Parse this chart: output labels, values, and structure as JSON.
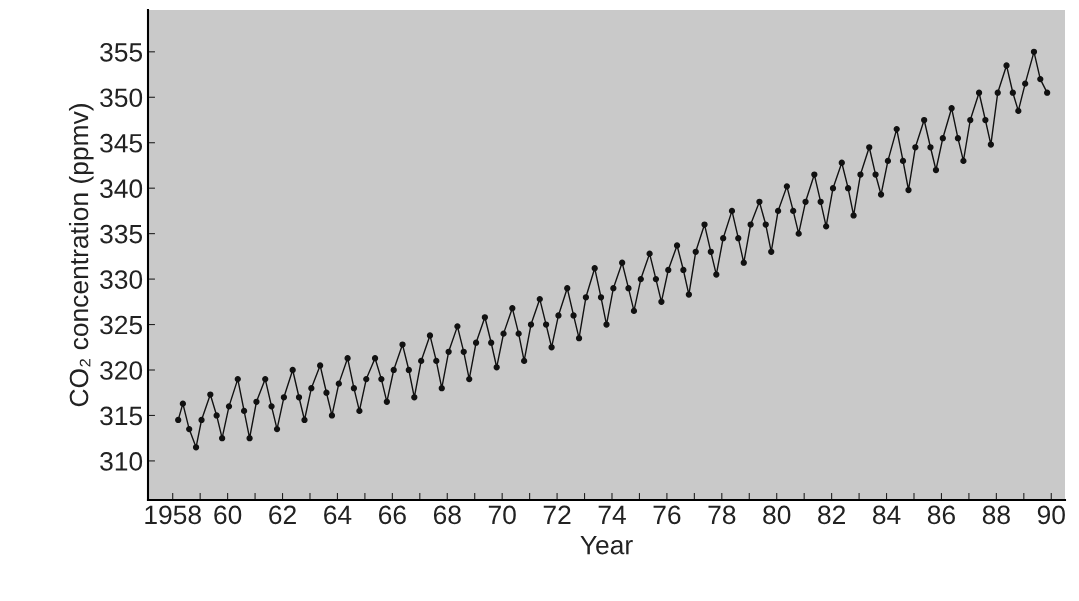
{
  "chart_data": {
    "type": "line",
    "xlabel": "Year",
    "ylabel": "CO₂ concentration (ppmv)",
    "x": [
      1958.2,
      1958.37,
      1958.6,
      1958.85,
      1959.05,
      1959.37,
      1959.6,
      1959.8,
      1960.05,
      1960.37,
      1960.6,
      1960.8,
      1961.05,
      1961.37,
      1961.6,
      1961.8,
      1962.05,
      1962.37,
      1962.6,
      1962.8,
      1963.05,
      1963.37,
      1963.6,
      1963.8,
      1964.05,
      1964.37,
      1964.6,
      1964.8,
      1965.05,
      1965.37,
      1965.6,
      1965.8,
      1966.05,
      1966.37,
      1966.6,
      1966.8,
      1967.05,
      1967.37,
      1967.6,
      1967.8,
      1968.05,
      1968.37,
      1968.6,
      1968.8,
      1969.05,
      1969.37,
      1969.6,
      1969.8,
      1970.05,
      1970.37,
      1970.6,
      1970.8,
      1971.05,
      1971.37,
      1971.6,
      1971.8,
      1972.05,
      1972.37,
      1972.6,
      1972.8,
      1973.05,
      1973.37,
      1973.6,
      1973.8,
      1974.05,
      1974.37,
      1974.6,
      1974.8,
      1975.05,
      1975.37,
      1975.6,
      1975.8,
      1976.05,
      1976.37,
      1976.6,
      1976.8,
      1977.05,
      1977.37,
      1977.6,
      1977.8,
      1978.05,
      1978.37,
      1978.6,
      1978.8,
      1979.05,
      1979.37,
      1979.6,
      1979.8,
      1980.05,
      1980.37,
      1980.6,
      1980.8,
      1981.05,
      1981.37,
      1981.6,
      1981.8,
      1982.05,
      1982.37,
      1982.6,
      1982.8,
      1983.05,
      1983.37,
      1983.6,
      1983.8,
      1984.05,
      1984.37,
      1984.6,
      1984.8,
      1985.05,
      1985.37,
      1985.6,
      1985.8,
      1986.05,
      1986.37,
      1986.6,
      1986.8,
      1987.05,
      1987.37,
      1987.6,
      1987.8,
      1988.05,
      1988.37,
      1988.6,
      1988.8,
      1989.05,
      1989.37,
      1989.6,
      1989.85
    ],
    "series": [
      {
        "color": "#111111",
        "values": [
          314.5,
          316.3,
          313.5,
          311.5,
          314.5,
          317.3,
          315,
          312.5,
          316,
          319,
          315.5,
          312.5,
          316.5,
          319,
          316,
          313.5,
          317,
          320,
          317,
          314.5,
          318,
          320.5,
          317.5,
          315,
          318.5,
          321.3,
          318,
          315.5,
          319,
          321.3,
          319,
          316.5,
          320,
          322.8,
          320,
          317,
          321,
          323.8,
          321,
          318,
          322,
          324.8,
          322,
          319,
          323,
          325.8,
          323,
          320.3,
          324,
          326.8,
          324,
          321,
          325,
          327.8,
          325,
          322.5,
          326,
          329,
          326,
          323.5,
          328,
          331.2,
          328,
          325,
          329,
          331.8,
          329,
          326.5,
          330,
          332.8,
          330,
          327.5,
          331,
          333.7,
          331,
          328.3,
          333,
          336,
          333,
          330.5,
          334.5,
          337.5,
          334.5,
          331.8,
          336,
          338.5,
          336,
          333,
          337.5,
          340.2,
          337.5,
          335,
          338.5,
          341.5,
          338.5,
          335.8,
          340,
          342.8,
          340,
          337,
          341.5,
          344.5,
          341.5,
          339.3,
          343,
          346.5,
          343,
          339.8,
          344.5,
          347.5,
          344.5,
          342,
          345.5,
          348.8,
          345.5,
          343,
          347.5,
          350.5,
          347.5,
          344.8,
          350.5,
          353.5,
          350.5,
          348.5,
          351.5,
          355,
          352,
          350.5
        ]
      }
    ],
    "marker": "circle",
    "line_style": "solid",
    "xlim": [
      1957.1,
      1990.5
    ],
    "ylim": [
      305.7,
      359.6
    ],
    "xticks": [
      1958,
      {
        "value": 1959,
        "label": null
      },
      {
        "value": 1960,
        "label": "60"
      },
      {
        "value": 1961,
        "label": null
      },
      {
        "value": 1962,
        "label": "62"
      },
      {
        "value": 1963,
        "label": null
      },
      {
        "value": 1964,
        "label": "64"
      },
      {
        "value": 1965,
        "label": null
      },
      {
        "value": 1966,
        "label": "66"
      },
      {
        "value": 1967,
        "label": null
      },
      {
        "value": 1968,
        "label": "68"
      },
      {
        "value": 1969,
        "label": null
      },
      {
        "value": 1970,
        "label": "70"
      },
      {
        "value": 1971,
        "label": null
      },
      {
        "value": 1972,
        "label": "72"
      },
      {
        "value": 1973,
        "label": null
      },
      {
        "value": 1974,
        "label": "74"
      },
      {
        "value": 1975,
        "label": null
      },
      {
        "value": 1976,
        "label": "76"
      },
      {
        "value": 1977,
        "label": null
      },
      {
        "value": 1978,
        "label": "78"
      },
      {
        "value": 1979,
        "label": null
      },
      {
        "value": 1980,
        "label": "80"
      },
      {
        "value": 1981,
        "label": null
      },
      {
        "value": 1982,
        "label": "82"
      },
      {
        "value": 1983,
        "label": null
      },
      {
        "value": 1984,
        "label": "84"
      },
      {
        "value": 1985,
        "label": null
      },
      {
        "value": 1986,
        "label": "86"
      },
      {
        "value": 1987,
        "label": null
      },
      {
        "value": 1988,
        "label": "88"
      },
      {
        "value": 1989,
        "label": null
      },
      {
        "value": 1990,
        "label": "90"
      }
    ],
    "yticks": [
      310,
      315,
      320,
      325,
      330,
      335,
      340,
      345,
      350,
      355
    ]
  }
}
